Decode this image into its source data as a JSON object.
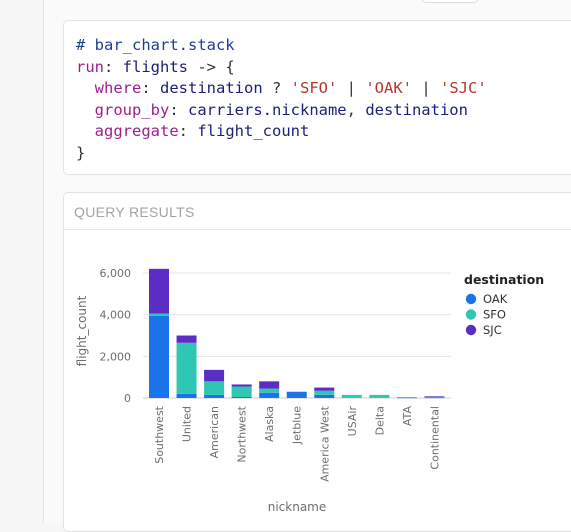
{
  "code": {
    "lines": [
      [
        {
          "t": "# bar_chart.stack",
          "c": "comment"
        }
      ],
      [
        {
          "t": "run",
          "c": "kw"
        },
        {
          "t": ": ",
          "c": "op"
        },
        {
          "t": "flights",
          "c": "ident"
        },
        {
          "t": " -> {",
          "c": "op"
        }
      ],
      [
        {
          "t": "  ",
          "c": "op"
        },
        {
          "t": "where",
          "c": "kw"
        },
        {
          "t": ": ",
          "c": "op"
        },
        {
          "t": "destination",
          "c": "ident"
        },
        {
          "t": " ? ",
          "c": "op"
        },
        {
          "t": "'SFO'",
          "c": "str"
        },
        {
          "t": " | ",
          "c": "op"
        },
        {
          "t": "'OAK'",
          "c": "str"
        },
        {
          "t": " | ",
          "c": "op"
        },
        {
          "t": "'SJC'",
          "c": "str"
        }
      ],
      [
        {
          "t": "  ",
          "c": "op"
        },
        {
          "t": "group_by",
          "c": "kw"
        },
        {
          "t": ": ",
          "c": "op"
        },
        {
          "t": "carriers.nickname",
          "c": "ident"
        },
        {
          "t": ", ",
          "c": "op"
        },
        {
          "t": "destination",
          "c": "ident"
        }
      ],
      [
        {
          "t": "  ",
          "c": "op"
        },
        {
          "t": "aggregate",
          "c": "kw"
        },
        {
          "t": ": ",
          "c": "op"
        },
        {
          "t": "flight_count",
          "c": "ident"
        }
      ],
      [
        {
          "t": "}",
          "c": "op"
        }
      ]
    ]
  },
  "results": {
    "title": "QUERY RESULTS"
  },
  "chart_data": {
    "type": "bar",
    "stacked": true,
    "xlabel": "nickname",
    "ylabel": "flight_count",
    "ylim": [
      0,
      6000
    ],
    "yticks": [
      0,
      2000,
      4000,
      6000
    ],
    "ytick_labels": [
      "0",
      "2,000",
      "4,000",
      "6,000"
    ],
    "grid": true,
    "legend": {
      "title": "destination",
      "placement": "right"
    },
    "categories": [
      "Southwest",
      "United",
      "American",
      "Northwest",
      "Alaska",
      "Jetblue",
      "America West",
      "USAir",
      "Delta",
      "ATA",
      "Continental"
    ],
    "series": [
      {
        "name": "OAK",
        "color": "#1a73e8",
        "values": [
          3950,
          200,
          150,
          50,
          250,
          300,
          150,
          0,
          0,
          30,
          0
        ]
      },
      {
        "name": "SFO",
        "color": "#2fc6b3",
        "values": [
          100,
          2450,
          650,
          500,
          200,
          0,
          200,
          150,
          150,
          0,
          30
        ]
      },
      {
        "name": "SJC",
        "color": "#5c2dc5",
        "values": [
          2150,
          350,
          550,
          100,
          350,
          0,
          150,
          0,
          0,
          0,
          50
        ]
      }
    ]
  }
}
